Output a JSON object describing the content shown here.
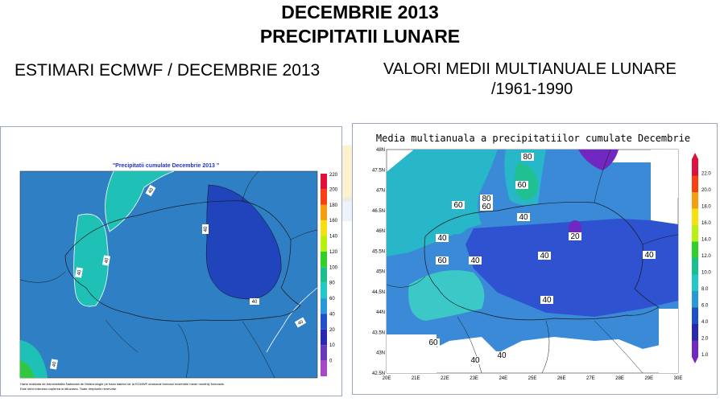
{
  "header": {
    "title_line1": "DECEMBRIE 2013",
    "title_line2": "PRECIPITATII LUNARE"
  },
  "left_section": {
    "heading": "ESTIMARI ECMWF / DECEMBRIE 2013",
    "map": {
      "title": "\"Precipitatii cumulate Decembrie 2013 \"",
      "legend_ticks": [
        "220",
        "200",
        "180",
        "160",
        "140",
        "120",
        "100",
        "80",
        "60",
        "40",
        "20",
        "10",
        "0"
      ],
      "legend_colors": [
        "#e0103c",
        "#f84010",
        "#f89c10",
        "#f8e010",
        "#b8f010",
        "#30d028",
        "#18c090",
        "#20c8c8",
        "#2898d8",
        "#2050c8",
        "#2828b0",
        "#6838b8",
        "#a848c8"
      ],
      "contour_labels": [
        "40",
        "40",
        "40",
        "40",
        "40",
        "40",
        "40"
      ],
      "footnote_line1": "Harta realizata de Administratia Nationala de Meteorologie pe baza datelor de la ECMWF-seasonal forecast ensemble mean monthly forecasts.",
      "footnote_line2": "Este strict interzisa copierea si difuzarea. Toate drepturile rezervate."
    }
  },
  "right_section": {
    "heading_line1": "VALORI MEDII MULTIANUALE LUNARE",
    "heading_line2": "/1961-1990",
    "map": {
      "title": "Media multianuala a precipitatiilor cumulate Decembrie",
      "lat_labels": [
        "48N",
        "47.5N",
        "47N",
        "46.5N",
        "46N",
        "45.5N",
        "45N",
        "44.5N",
        "44N",
        "43.5N",
        "43N",
        "42.5N"
      ],
      "lon_labels": [
        "20E",
        "21E",
        "22E",
        "23E",
        "24E",
        "25E",
        "26E",
        "27E",
        "28E",
        "29E",
        "30E"
      ],
      "legend_ticks": [
        "22.0",
        "20.0",
        "18.0",
        "16.0",
        "14.0",
        "12.0",
        "10.0",
        "8.0",
        "6.0",
        "4.0",
        "2.0",
        "1.0"
      ],
      "legend_colors": [
        "#e0103c",
        "#f84010",
        "#f89c10",
        "#f8e010",
        "#b8f010",
        "#30d028",
        "#18c090",
        "#20c8c8",
        "#2898d8",
        "#2050c8",
        "#2828b0",
        "#7028c0"
      ],
      "contour_labels": [
        "80",
        "60",
        "80",
        "60",
        "60",
        "40",
        "40",
        "20",
        "60",
        "40",
        "40",
        "40",
        "40",
        "60",
        "40",
        "40"
      ]
    }
  }
}
